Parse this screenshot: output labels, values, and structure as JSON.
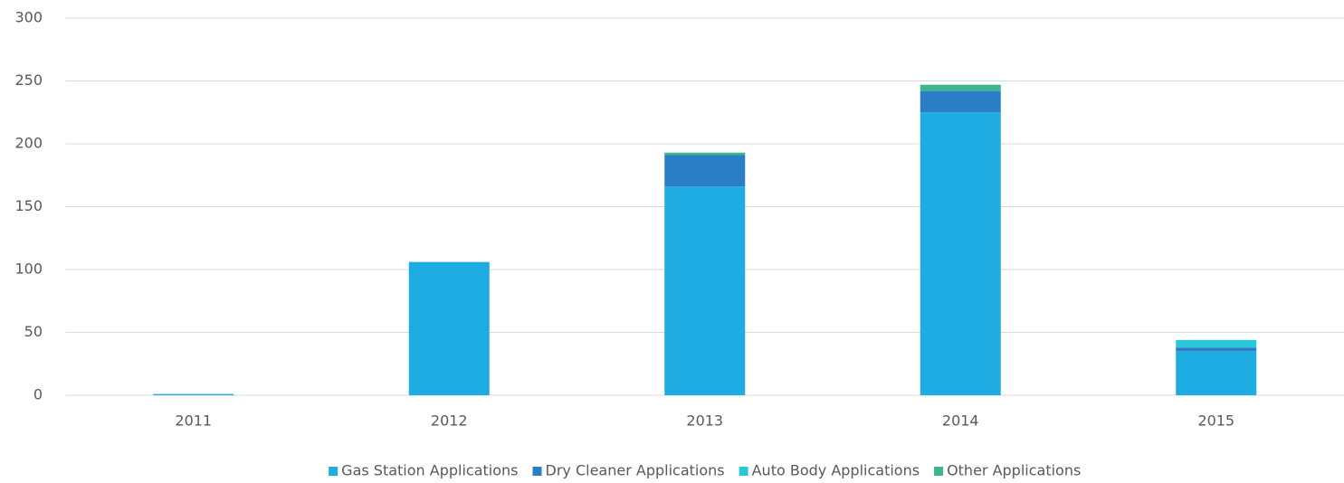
{
  "chart_data": {
    "type": "stacked_bar",
    "categories": [
      "2011",
      "2012",
      "2013",
      "2014",
      "2015"
    ],
    "series": [
      {
        "name": "Gas Station Applications",
        "color": "#1face3",
        "values": [
          1,
          106,
          166,
          225,
          35
        ]
      },
      {
        "name": "Dry Cleaner Applications",
        "color": "#2a7ec6",
        "values": [
          0,
          0,
          25,
          17,
          3
        ]
      },
      {
        "name": "Auto Body Applications",
        "color": "#2bc8d8",
        "values": [
          0,
          0,
          0,
          0,
          6
        ]
      },
      {
        "name": "Other Applications",
        "color": "#3db58e",
        "values": [
          0,
          0,
          2,
          5,
          0
        ]
      }
    ],
    "ylim": [
      0,
      300
    ],
    "yticks": [
      0,
      50,
      100,
      150,
      200,
      250,
      300
    ],
    "grid": true,
    "legend": "bottom"
  }
}
